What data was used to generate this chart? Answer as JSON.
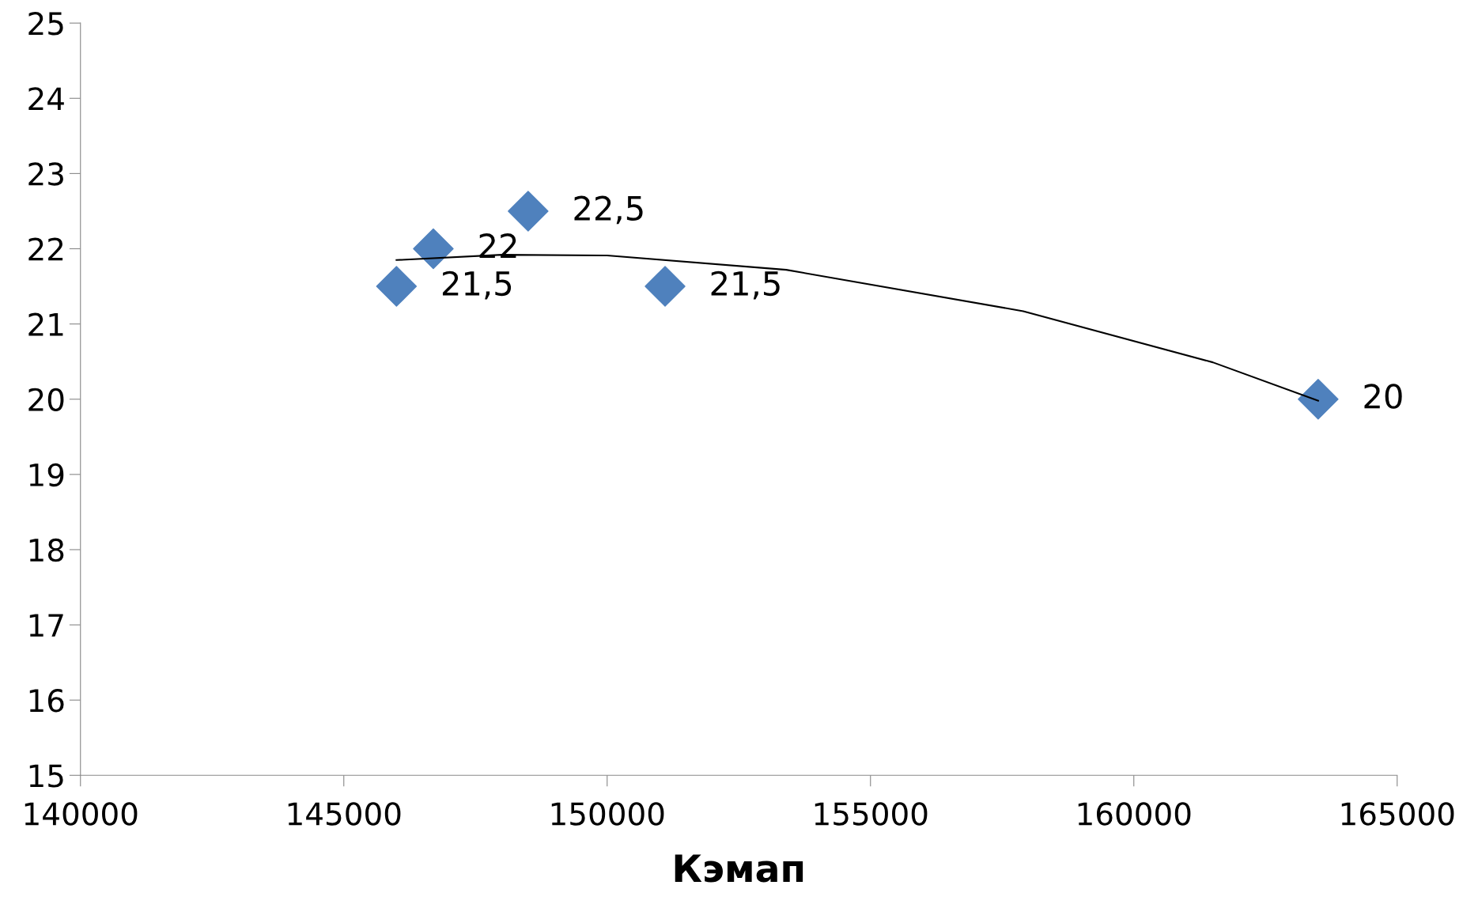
{
  "chart_data": {
    "type": "scatter",
    "xlabel": "Кэмап",
    "xlim": [
      140000,
      165000
    ],
    "xticks": [
      140000,
      145000,
      150000,
      155000,
      160000,
      165000
    ],
    "ylim": [
      15,
      25
    ],
    "yticks": [
      15,
      16,
      17,
      18,
      19,
      20,
      21,
      22,
      23,
      24,
      25
    ],
    "grid": false,
    "legend": false,
    "series": [
      {
        "color": "#4f81bd",
        "marker": "diamond",
        "x": [
          146000,
          146700,
          148500,
          151100,
          163500
        ],
        "values": [
          21.5,
          22,
          22.5,
          21.5,
          20
        ],
        "value_labels": [
          "21,5",
          "22",
          "22,5",
          "21,5",
          "20"
        ]
      },
      {
        "type": "line",
        "color": "#000000",
        "marker": "none",
        "line_style": "solid",
        "x": [
          146000,
          148000,
          150000,
          153400,
          157900,
          161500,
          163500
        ],
        "values": [
          21.85,
          21.92,
          21.91,
          21.72,
          21.17,
          20.49,
          19.98
        ]
      }
    ]
  }
}
